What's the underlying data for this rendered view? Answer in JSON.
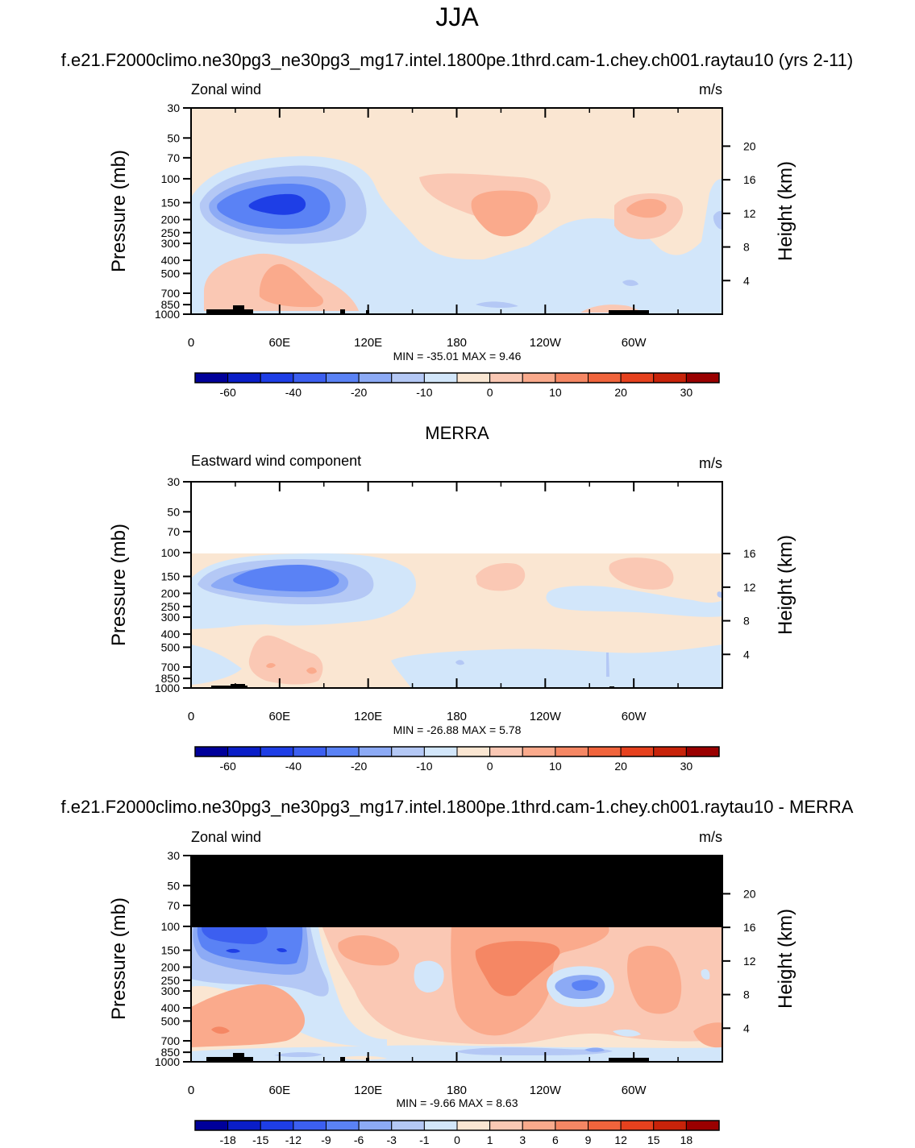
{
  "page_title": "JJA",
  "panels": [
    {
      "heading": "f.e21.F2000climo.ne30pg3_ne30pg3_mg17.intel.1800pe.1thrd.cam-1.chey.ch001.raytau10 (yrs 2-11)",
      "left_label": "Zonal wind",
      "right_label": "m/s",
      "y_title": "Pressure (mb)",
      "y_right_title": "Height (km)",
      "stats": "MIN = -35.01  MAX =  9.46"
    },
    {
      "heading": "MERRA",
      "left_label": "Eastward wind component",
      "right_label": "m/s",
      "y_title": "Pressure (mb)",
      "y_right_title": "Height (km)",
      "stats": "MIN = -26.88  MAX =  5.78"
    },
    {
      "heading": "f.e21.F2000climo.ne30pg3_ne30pg3_mg17.intel.1800pe.1thrd.cam-1.chey.ch001.raytau10 - MERRA",
      "left_label": "Zonal wind",
      "right_label": "m/s",
      "y_title": "Pressure (mb)",
      "y_right_title": "Height (km)",
      "stats": "MIN = -9.66  MAX =  8.63"
    }
  ],
  "colorbar_colors": [
    "#00009a",
    "#0a1ec8",
    "#1e3ee6",
    "#3c5ff0",
    "#5a82f5",
    "#8caaf5",
    "#b4c8f5",
    "#d2e6fa",
    "#fae6d2",
    "#fac8b4",
    "#faaa8c",
    "#f58764",
    "#f0643c",
    "#e6411e",
    "#c8230a",
    "#9a0000"
  ],
  "colorbars": [
    {
      "labels": [
        "-60",
        "-40",
        "-20",
        "-10",
        "0",
        "10",
        "20",
        "30"
      ]
    },
    {
      "labels": [
        "-60",
        "-40",
        "-20",
        "-10",
        "0",
        "10",
        "20",
        "30"
      ]
    },
    {
      "labels": [
        "-18",
        "-15",
        "-12",
        "-9",
        "-6",
        "-3",
        "-1",
        "0",
        "1",
        "3",
        "6",
        "9",
        "12",
        "15",
        "18"
      ]
    }
  ],
  "chart_data": [
    {
      "type": "heatmap",
      "title": "f.e21.F2000climo.ne30pg3_ne30pg3_mg17.intel.1800pe.1thrd.cam-1.chey.ch001.raytau10 (yrs 2-11)",
      "xlabel": "",
      "ylabel": "Pressure (mb)",
      "ylabel_right": "Height (km)",
      "xlim": [
        0,
        360
      ],
      "ylim": [
        1000,
        30
      ],
      "y_scale": "log",
      "x_ticks": [
        "0",
        "60E",
        "120E",
        "180",
        "120W",
        "60W"
      ],
      "y_ticks": [
        "30",
        "50",
        "70",
        "100",
        "150",
        "200",
        "250",
        "300",
        "400",
        "500",
        "700",
        "850",
        "1000"
      ],
      "y_right_ticks": [
        "20",
        "16",
        "12",
        "8",
        "4"
      ],
      "min": -35.01,
      "max": 9.46,
      "units": "m/s",
      "features": [
        {
          "desc": "easterly jet core",
          "lon": 60,
          "pres": 150,
          "value": -35
        },
        {
          "desc": "westerly maximum",
          "lon": 200,
          "pres": 170,
          "value": 9
        },
        {
          "desc": "westerly maximum",
          "lon": 305,
          "pres": 150,
          "value": 5
        },
        {
          "desc": "low-level westerlies",
          "lon": 55,
          "pres": 650,
          "value": 8
        }
      ]
    },
    {
      "type": "heatmap",
      "title": "MERRA",
      "xlabel": "",
      "ylabel": "Pressure (mb)",
      "ylabel_right": "Height (km)",
      "xlim": [
        0,
        360
      ],
      "ylim": [
        1000,
        30
      ],
      "y_scale": "log",
      "x_ticks": [
        "0",
        "60E",
        "120E",
        "180",
        "120W",
        "60W"
      ],
      "y_ticks": [
        "30",
        "50",
        "70",
        "100",
        "150",
        "200",
        "250",
        "300",
        "400",
        "500",
        "700",
        "850",
        "1000"
      ],
      "y_right_ticks": [
        "16",
        "12",
        "8",
        "4"
      ],
      "min": -26.88,
      "max": 5.78,
      "units": "m/s",
      "features": [
        {
          "desc": "easterly jet core",
          "lon": 65,
          "pres": 150,
          "value": -26
        },
        {
          "desc": "weak westerlies",
          "lon": 205,
          "pres": 150,
          "value": 4
        },
        {
          "desc": "weak westerlies",
          "lon": 300,
          "pres": 130,
          "value": 4
        }
      ]
    },
    {
      "type": "heatmap",
      "title": "f.e21.F2000climo.ne30pg3_ne30pg3_mg17.intel.1800pe.1thrd.cam-1.chey.ch001.raytau10 - MERRA",
      "xlabel": "",
      "ylabel": "Pressure (mb)",
      "ylabel_right": "Height (km)",
      "xlim": [
        0,
        360
      ],
      "ylim": [
        1000,
        30
      ],
      "y_scale": "log",
      "x_ticks": [
        "0",
        "60E",
        "120E",
        "180",
        "120W",
        "60W"
      ],
      "y_ticks": [
        "30",
        "50",
        "70",
        "100",
        "150",
        "200",
        "250",
        "300",
        "400",
        "500",
        "700",
        "850",
        "1000"
      ],
      "y_right_ticks": [
        "20",
        "16",
        "12",
        "8",
        "4"
      ],
      "min": -9.66,
      "max": 8.63,
      "units": "m/s",
      "features": [
        {
          "desc": "negative difference",
          "lon": 30,
          "pres": 150,
          "value": -9
        },
        {
          "desc": "positive difference",
          "lon": 205,
          "pres": 180,
          "value": 8
        },
        {
          "desc": "negative difference",
          "lon": 275,
          "pres": 260,
          "value": -7
        },
        {
          "desc": "positive difference",
          "lon": 330,
          "pres": 200,
          "value": 5
        },
        {
          "desc": "positive difference",
          "lon": 30,
          "pres": 550,
          "value": 6
        }
      ]
    }
  ]
}
